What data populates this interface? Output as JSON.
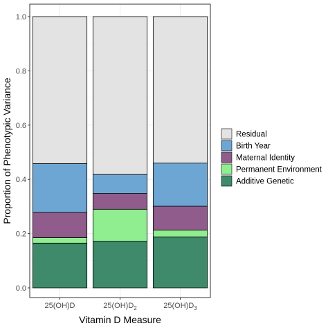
{
  "chart_data": {
    "type": "bar",
    "stacked": true,
    "categories": [
      {
        "base": "25(OH)D",
        "sub": ""
      },
      {
        "base": "25(OH)D",
        "sub": "2"
      },
      {
        "base": "25(OH)D",
        "sub": "3"
      }
    ],
    "series": [
      {
        "name": "Additive Genetic",
        "color": "#3f8a6b",
        "values": [
          0.165,
          0.172,
          0.188
        ]
      },
      {
        "name": "Permanent Environment",
        "color": "#90ee90",
        "values": [
          0.02,
          0.118,
          0.025
        ]
      },
      {
        "name": "Maternal Identity",
        "color": "#8f5c8c",
        "values": [
          0.093,
          0.058,
          0.088
        ]
      },
      {
        "name": "Birth Year",
        "color": "#6ea6d3",
        "values": [
          0.18,
          0.07,
          0.159
        ]
      },
      {
        "name": "Residual",
        "color": "#e3e3e3",
        "values": [
          0.542,
          0.582,
          0.54
        ]
      }
    ],
    "legend_order": [
      "Residual",
      "Birth Year",
      "Maternal Identity",
      "Permanent Environment",
      "Additive Genetic"
    ],
    "legend_position": "right",
    "xlabel": "Vitamin D Measure",
    "ylabel": "Proportion of Phenotypic Variance",
    "ylim": [
      0,
      1.0
    ],
    "yticks": [
      "0.0",
      "0.2",
      "0.4",
      "0.6",
      "0.8",
      "1.0"
    ],
    "grid": true,
    "panel_border_color": "#333333",
    "grid_color": "#ebebeb"
  }
}
